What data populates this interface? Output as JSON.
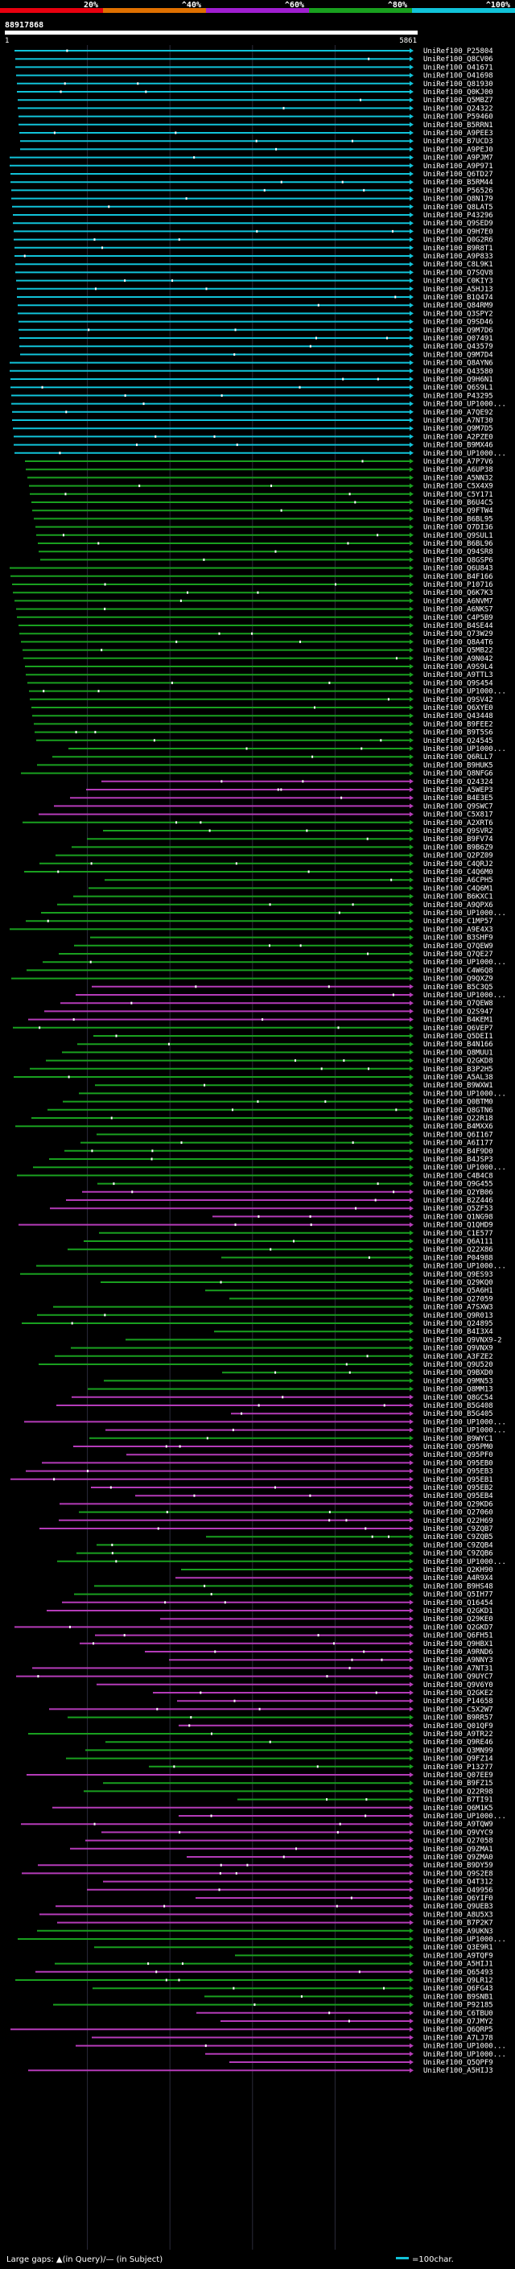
{
  "chart_data": {
    "type": "alignment-hits",
    "query_id": "88917868",
    "query_start": "1",
    "query_end": "5861",
    "query_length": 5861,
    "identity_scale": [
      {
        "label": "20%",
        "color": "#e8000f"
      },
      {
        "label": "^40%",
        "color": "#e07000"
      },
      {
        "label": "^60%",
        "color": "#a01fd0"
      },
      {
        "label": "^80%",
        "color": "#19a01f"
      },
      {
        "label": "^100%",
        "color": "#11c3d9"
      }
    ],
    "legend": {
      "gaps_text": "Large gaps: ▲(in Query)/— (in Subject)",
      "scale_text": "=100char.",
      "scale_color": "#11c3d9"
    },
    "hits": [
      "UniRef100_P25804",
      "UniRef100_Q8CV06",
      "UniRef100_O41671",
      "UniRef100_O41698",
      "UniRef100_Q81930",
      "UniRef100_Q0KJ00",
      "UniRef100_Q5MBZ7",
      "UniRef100_Q24322",
      "UniRef100_P59460",
      "UniRef100_B5RRN1",
      "UniRef100_A9PEE3",
      "UniRef100_B7UCD3",
      "UniRef100_A9PEJ0",
      "UniRef100_A9PJM7",
      "UniRef100_A9P971",
      "UniRef100_Q6TD27",
      "UniRef100_B5RM44",
      "UniRef100_P56526",
      "UniRef100_Q8N179",
      "UniRef100_Q8LAT5",
      "UniRef100_P43296",
      "UniRef100_Q9SED9",
      "UniRef100_Q9H7E0",
      "UniRef100_Q0G2R6",
      "UniRef100_B9R8T1",
      "UniRef100_A9P833",
      "UniRef100_C8L9K1",
      "UniRef100_Q7SQV8",
      "UniRef100_C0KIY3",
      "UniRef100_A5HJ13",
      "UniRef100_B1Q474",
      "UniRef100_Q84RM9",
      "UniRef100_Q3SPY2",
      "UniRef100_Q9SD46",
      "UniRef100_Q9M7D6",
      "UniRef100_Q07491",
      "UniRef100_Q43579",
      "UniRef100_Q9M7D4",
      "UniRef100_Q8AYN6",
      "UniRef100_Q43580",
      "UniRef100_Q9H6N1",
      "UniRef100_Q6S9L1",
      "UniRef100_P43295",
      "UniRef100_UP1000...",
      "UniRef100_A7QE92",
      "UniRef100_A7NT30",
      "UniRef100_Q9M7D5",
      "UniRef100_A2PZE0",
      "UniRef100_B9MX46",
      "UniRef100_UP1000...",
      "UniRef100_A7P7V6",
      "UniRef100_A6UP38",
      "UniRef100_A5NN32",
      "UniRef100_C5X4X9",
      "UniRef100_C5Y171",
      "UniRef100_B6U4C5",
      "UniRef100_Q9FTW4",
      "UniRef100_B6BL95",
      "UniRef100_Q7DI36",
      "UniRef100_Q9SUL1",
      "UniRef100_B6BL96",
      "UniRef100_Q94SR8",
      "UniRef100_Q8GSP6",
      "UniRef100_Q6U843",
      "UniRef100_B4F166",
      "UniRef100_P10716",
      "UniRef100_Q6K7K3",
      "UniRef100_A6NVM7",
      "UniRef100_A6NKS7",
      "UniRef100_C4P5B9",
      "UniRef100_B4SE44",
      "UniRef100_Q73W29",
      "UniRef100_Q8A4T6",
      "UniRef100_Q5MB22",
      "UniRef100_A9N042",
      "UniRef100_A9S9L4",
      "UniRef100_A9TTL3",
      "UniRef100_Q9S454",
      "UniRef100_UP1000...",
      "UniRef100_Q9SV42",
      "UniRef100_Q6XYE0",
      "UniRef100_Q43448",
      "UniRef100_B9FEE2",
      "UniRef100_B9T5S6",
      "UniRef100_Q24545",
      "UniRef100_UP1000...",
      "UniRef100_Q6RLL7",
      "UniRef100_B9HUK5",
      "UniRef100_Q8NFG6",
      "UniRef100_Q24324",
      "UniRef100_A5WEP3",
      "UniRef100_B4E3E5",
      "UniRef100_Q9SWC7",
      "UniRef100_C5X817",
      "UniRef100_A2XRT6",
      "UniRef100_Q9SVR2",
      "UniRef100_B9FV74",
      "UniRef100_B9B6Z9",
      "UniRef100_Q2PZ09",
      "UniRef100_C4QRJ2",
      "UniRef100_C4Q6M0",
      "UniRef100_A6CPH5",
      "UniRef100_C4Q6M1",
      "UniRef100_B6KXC1",
      "UniRef100_A9QPX6",
      "UniRef100_UP1000...",
      "UniRef100_C1MP57",
      "UniRef100_A9E4X3",
      "UniRef100_B3SHF9",
      "UniRef100_Q7QEW9",
      "UniRef100_Q7QE27",
      "UniRef100_UP1000...",
      "UniRef100_C4W6Q8",
      "UniRef100_Q9QXZ9",
      "UniRef100_B5C3Q5",
      "UniRef100_UP1000...",
      "UniRef100_Q7QEW8",
      "UniRef100_Q2S947",
      "UniRef100_B4KEM1",
      "UniRef100_Q6VEP7",
      "UniRef100_Q5DEI1",
      "UniRef100_B4N166",
      "UniRef100_Q8MUU1",
      "UniRef100_Q2GKD8",
      "UniRef100_B3P2H5",
      "UniRef100_A5AL38",
      "UniRef100_B9WXW1",
      "UniRef100_UP1000...",
      "UniRef100_Q0BTM0",
      "UniRef100_Q8GTN6",
      "UniRef100_Q22R18",
      "UniRef100_B4MXX6",
      "UniRef100_Q6I167",
      "UniRef100_A6I177",
      "UniRef100_B4F9D0",
      "UniRef100_B4JSP3",
      "UniRef100_UP1000...",
      "UniRef100_C4B4C8",
      "UniRef100_Q9G455",
      "UniRef100_Q2YB06",
      "UniRef100_B2Z446",
      "UniRef100_Q5ZF53",
      "UniRef100_Q1NG98",
      "UniRef100_Q1QHD9",
      "UniRef100_C1E577",
      "UniRef100_Q6A111",
      "UniRef100_Q22X86",
      "UniRef100_P04988",
      "UniRef100_UP1000...",
      "UniRef100_Q9ES93",
      "UniRef100_Q29KQ0",
      "UniRef100_Q5A6H1",
      "UniRef100_Q27059",
      "UniRef100_A7SXW3",
      "UniRef100_Q9R013",
      "UniRef100_Q24895",
      "UniRef100_B4I3X4",
      "UniRef100_Q9VNX9-2",
      "UniRef100_Q9VNX9",
      "UniRef100_A3FZE2",
      "UniRef100_Q9U520",
      "UniRef100_Q9BXD0",
      "UniRef100_Q9MN53",
      "UniRef100_Q8MM13",
      "UniRef100_Q8GC54",
      "UniRef100_B5G408",
      "UniRef100_B5G405",
      "UniRef100_UP1000...",
      "UniRef100_UP1000...",
      "UniRef100_B9WYC1",
      "UniRef100_Q95PM0",
      "UniRef100_Q95PF0",
      "UniRef100_Q95EB0",
      "UniRef100_Q95EB3",
      "UniRef100_Q95EB1",
      "UniRef100_Q95EB2",
      "UniRef100_Q95EB4",
      "UniRef100_Q29KD6",
      "UniRef100_Q27060",
      "UniRef100_Q22H69",
      "UniRef100_C9ZQB7",
      "UniRef100_C9ZQB5",
      "UniRef100_C9ZQB4",
      "UniRef100_C9ZQB6",
      "UniRef100_UP1000...",
      "UniRef100_Q2KH90",
      "UniRef100_A4R9X4",
      "UniRef100_B9HS48",
      "UniRef100_Q5IH77",
      "UniRef100_Q16454",
      "UniRef100_Q2GKD1",
      "UniRef100_Q29KE0",
      "UniRef100_Q2GKD7",
      "UniRef100_Q6FH51",
      "UniRef100_Q9HBX1",
      "UniRef100_A9RND6",
      "UniRef100_A9NNY3",
      "UniRef100_A7NT31",
      "UniRef100_Q9UYC7",
      "UniRef100_Q9V6Y0",
      "UniRef100_Q2GKE2",
      "UniRef100_P14658",
      "UniRef100_C5X2W7",
      "UniRef100_B9RR57",
      "UniRef100_Q01QF9",
      "UniRef100_A9TR22",
      "UniRef100_Q9RE46",
      "UniRef100_Q3MN99",
      "UniRef100_Q9FZ14",
      "UniRef100_P13277",
      "UniRef100_Q07EE9",
      "UniRef100_B9FZ15",
      "UniRef100_Q22R98",
      "UniRef100_B7TI91",
      "UniRef100_Q6M1K5",
      "UniRef100_UP1000...",
      "UniRef100_A9TQW9",
      "UniRef100_Q9VYC9",
      "UniRef100_Q27058",
      "UniRef100_Q9ZMA1",
      "UniRef100_Q9ZMA0",
      "UniRef100_B9DY59",
      "UniRef100_Q9S2E8",
      "UniRef100_Q4T312",
      "UniRef100_Q49956",
      "UniRef100_Q6YIF0",
      "UniRef100_Q9UEB3",
      "UniRef100_A8U5X3",
      "UniRef100_B7P2K7",
      "UniRef100_A9UKN3",
      "UniRef100_UP1000...",
      "UniRef100_Q3E9R1",
      "UniRef100_A9TQF9",
      "UniRef100_A5HIJ1",
      "UniRef100_Q65493",
      "UniRef100_Q9LR12",
      "UniRef100_Q6FG43",
      "UniRef100_B9SNB1",
      "UniRef100_P92185",
      "UniRef100_C6TBU0",
      "UniRef100_Q7JMY2",
      "UniRef100_Q6QRP5",
      "UniRef100_A7LJ78",
      "UniRef100_UP1000...",
      "UniRef100_UP1000...",
      "UniRef100_Q5QPF9",
      "UniRef100_A5HIJ3"
    ]
  }
}
